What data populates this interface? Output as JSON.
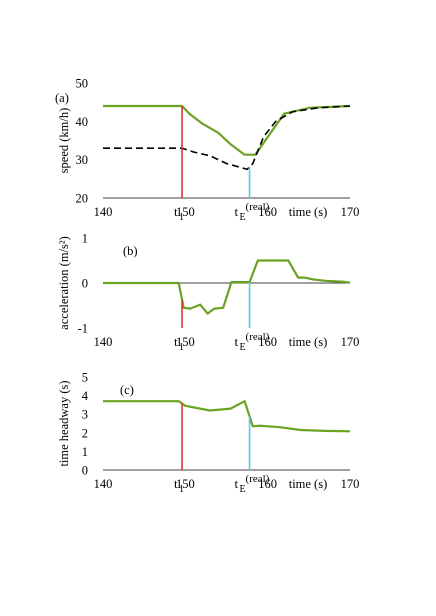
{
  "chart_data": [
    {
      "panel_label": "(a)",
      "type": "line",
      "ylabel": "speed (km/h)",
      "xlabel": "time (s)",
      "xlim": [
        140,
        170
      ],
      "ylim": [
        20,
        50
      ],
      "x_ticks": [
        "140",
        "150",
        "160",
        "170"
      ],
      "y_ticks": [
        "20",
        "30",
        "40",
        "50"
      ],
      "grid": false,
      "series": [
        {
          "color": "#6aa322",
          "style": "solid",
          "x": [
            140,
            149.6,
            150.5,
            152,
            154,
            155.5,
            157.2,
            158.5,
            162,
            165,
            170
          ],
          "y": [
            44,
            44,
            42,
            39.5,
            37,
            34,
            31.3,
            31.3,
            42,
            43.5,
            44
          ]
        },
        {
          "color": "#000000",
          "style": "dashed",
          "x": [
            140,
            149.6,
            151,
            153,
            155,
            157.5,
            158.2,
            159.5,
            161,
            163,
            166,
            170
          ],
          "y": [
            33,
            33,
            32,
            31,
            29,
            27.5,
            29,
            36,
            40,
            42.5,
            43.5,
            44
          ]
        }
      ],
      "markers": [
        {
          "label": "t",
          "sub": "1",
          "x": 149.6,
          "color": "#d9372a"
        },
        {
          "label": "t",
          "sub": "E",
          "sup": "(real)",
          "x": 157.8,
          "color": "#5bc8e6"
        }
      ]
    },
    {
      "panel_label": "(b)",
      "type": "line",
      "ylabel": "acceleration (m/s²)",
      "xlabel": "time (s)",
      "xlim": [
        140,
        170
      ],
      "ylim": [
        -1,
        1
      ],
      "x_ticks": [
        "140",
        "150",
        "160",
        "170"
      ],
      "y_ticks": [
        "-1",
        "0",
        "1"
      ],
      "grid": false,
      "series": [
        {
          "color": "#6aa322",
          "style": "solid",
          "x": [
            140,
            149.2,
            149.8,
            150.6,
            151.8,
            152.7,
            153.5,
            154.6,
            155.6,
            156.6,
            157.8,
            158.8,
            160,
            161.2,
            162.5,
            163.7,
            164.5,
            165.5,
            167,
            169,
            170
          ],
          "y": [
            0,
            0,
            -0.55,
            -0.57,
            -0.48,
            -0.68,
            -0.57,
            -0.55,
            0.02,
            0.02,
            0.02,
            0.5,
            0.5,
            0.5,
            0.5,
            0.12,
            0.12,
            0.08,
            0.05,
            0.03,
            0.01
          ]
        }
      ],
      "markers": [
        {
          "label": "t",
          "sub": "1",
          "x": 149.6,
          "color": "#d9372a"
        },
        {
          "label": "t",
          "sub": "E",
          "sup": "(real)",
          "x": 157.8,
          "color": "#5bc8e6"
        }
      ]
    },
    {
      "panel_label": "(c)",
      "type": "line",
      "ylabel": "time headway (s)",
      "xlabel": "time (s)",
      "xlim": [
        140,
        170
      ],
      "ylim": [
        0,
        5
      ],
      "x_ticks": [
        "140",
        "150",
        "160",
        "170"
      ],
      "y_ticks": [
        "0",
        "1",
        "2",
        "3",
        "4",
        "5"
      ],
      "grid": false,
      "series": [
        {
          "color": "#6aa322",
          "style": "solid",
          "x": [
            140,
            149.2,
            150,
            153,
            155.5,
            157.2,
            158.2,
            159,
            161.5,
            164,
            167,
            170
          ],
          "y": [
            3.7,
            3.7,
            3.45,
            3.2,
            3.3,
            3.7,
            2.35,
            2.38,
            2.3,
            2.15,
            2.1,
            2.08
          ]
        }
      ],
      "markers": [
        {
          "label": "t",
          "sub": "1",
          "x": 149.6,
          "color": "#d9372a"
        },
        {
          "label": "t",
          "sub": "E",
          "sup": "(real)",
          "x": 157.8,
          "color": "#5bc8e6"
        }
      ]
    }
  ]
}
